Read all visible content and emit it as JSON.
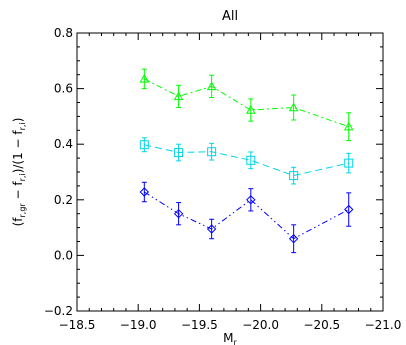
{
  "chart_data": {
    "type": "line",
    "title": "All",
    "xlabel": "M",
    "xlabel_sub": "r",
    "ylabel_parts": [
      "(f",
      "r,gr",
      " − f",
      "r,i",
      ")/(1 − f",
      "r,i",
      ")"
    ],
    "xlim": [
      -18.5,
      -21.0
    ],
    "ylim": [
      -0.2,
      0.8
    ],
    "xticks": [
      -18.5,
      -19.0,
      -19.5,
      -20.0,
      -20.5,
      -21.0
    ],
    "xtick_labels": [
      "−18.5",
      "−19.0",
      "−19.5",
      "−20.0",
      "−20.5",
      "−21.0"
    ],
    "yticks": [
      -0.2,
      0.0,
      0.2,
      0.4,
      0.6,
      0.8
    ],
    "ytick_labels": [
      "−0.2",
      "0.0",
      "0.2",
      "0.4",
      "0.6",
      "0.8"
    ],
    "grid": false,
    "series": [
      {
        "marker": "triangle",
        "color": "#00ff00",
        "dash": "6 3 2 3",
        "x": [
          -19.05,
          -19.33,
          -19.6,
          -19.92,
          -20.27,
          -20.72
        ],
        "y": [
          0.635,
          0.572,
          0.608,
          0.523,
          0.532,
          0.463
        ],
        "err": [
          0.035,
          0.04,
          0.04,
          0.04,
          0.045,
          0.05
        ]
      },
      {
        "marker": "square",
        "color": "#00d4e8",
        "dash": "7 4",
        "x": [
          -19.05,
          -19.33,
          -19.6,
          -19.92,
          -20.27,
          -20.72
        ],
        "y": [
          0.398,
          0.37,
          0.373,
          0.342,
          0.287,
          0.332
        ],
        "err": [
          0.025,
          0.03,
          0.03,
          0.03,
          0.03,
          0.035
        ]
      },
      {
        "marker": "diamond",
        "color": "#0000ff",
        "dash": "6 3 1.5 3 1.5 3",
        "x": [
          -19.05,
          -19.33,
          -19.6,
          -19.92,
          -20.27,
          -20.72
        ],
        "y": [
          0.228,
          0.15,
          0.095,
          0.2,
          0.06,
          0.165
        ],
        "err": [
          0.035,
          0.04,
          0.035,
          0.04,
          0.05,
          0.06
        ]
      }
    ]
  }
}
